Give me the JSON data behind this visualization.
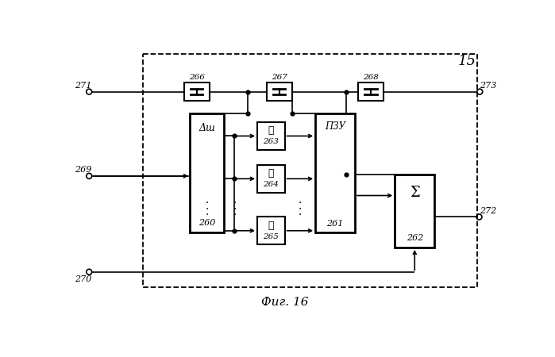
{
  "fig_title": "Фиг. 16",
  "label_15": "15",
  "bg_color": "#ffffff",
  "line_color": "#000000",
  "label_271": "271",
  "label_273": "273",
  "label_269": "269",
  "label_270": "270",
  "label_272": "272",
  "label_260": "260",
  "label_261": "261",
  "label_262": "262",
  "label_263": "263",
  "label_264": "264",
  "label_265": "265",
  "label_266": "266",
  "label_267": "267",
  "label_268": "268",
  "label_pzu": "ПЗУ",
  "label_delta": "Δш",
  "label_l": "ℓ",
  "label_sigma": "Σ"
}
